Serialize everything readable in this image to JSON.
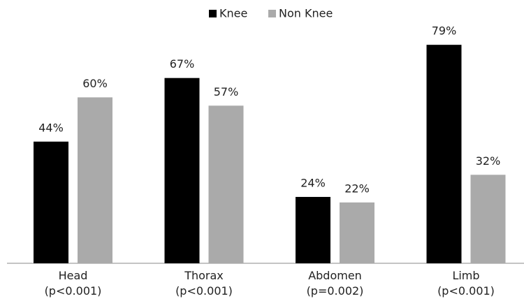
{
  "chart_data": {
    "type": "bar",
    "categories": [
      "Head\n(p<0.001)",
      "Thorax\n(p<0.001)",
      "Abdomen\n(p=0.002)",
      "Limb\n(p<0.001)"
    ],
    "series": [
      {
        "name": "Knee",
        "color": "#000000",
        "values": [
          44,
          67,
          24,
          79
        ],
        "value_labels": [
          "44%",
          "67%",
          "24%",
          "79%"
        ]
      },
      {
        "name": "Non Knee",
        "color": "#aaaaaa",
        "values": [
          60,
          57,
          22,
          32
        ],
        "value_labels": [
          "60%",
          "57%",
          "22%",
          "32%"
        ]
      }
    ],
    "ylim": [
      0,
      94.7
    ],
    "legend": "top"
  }
}
